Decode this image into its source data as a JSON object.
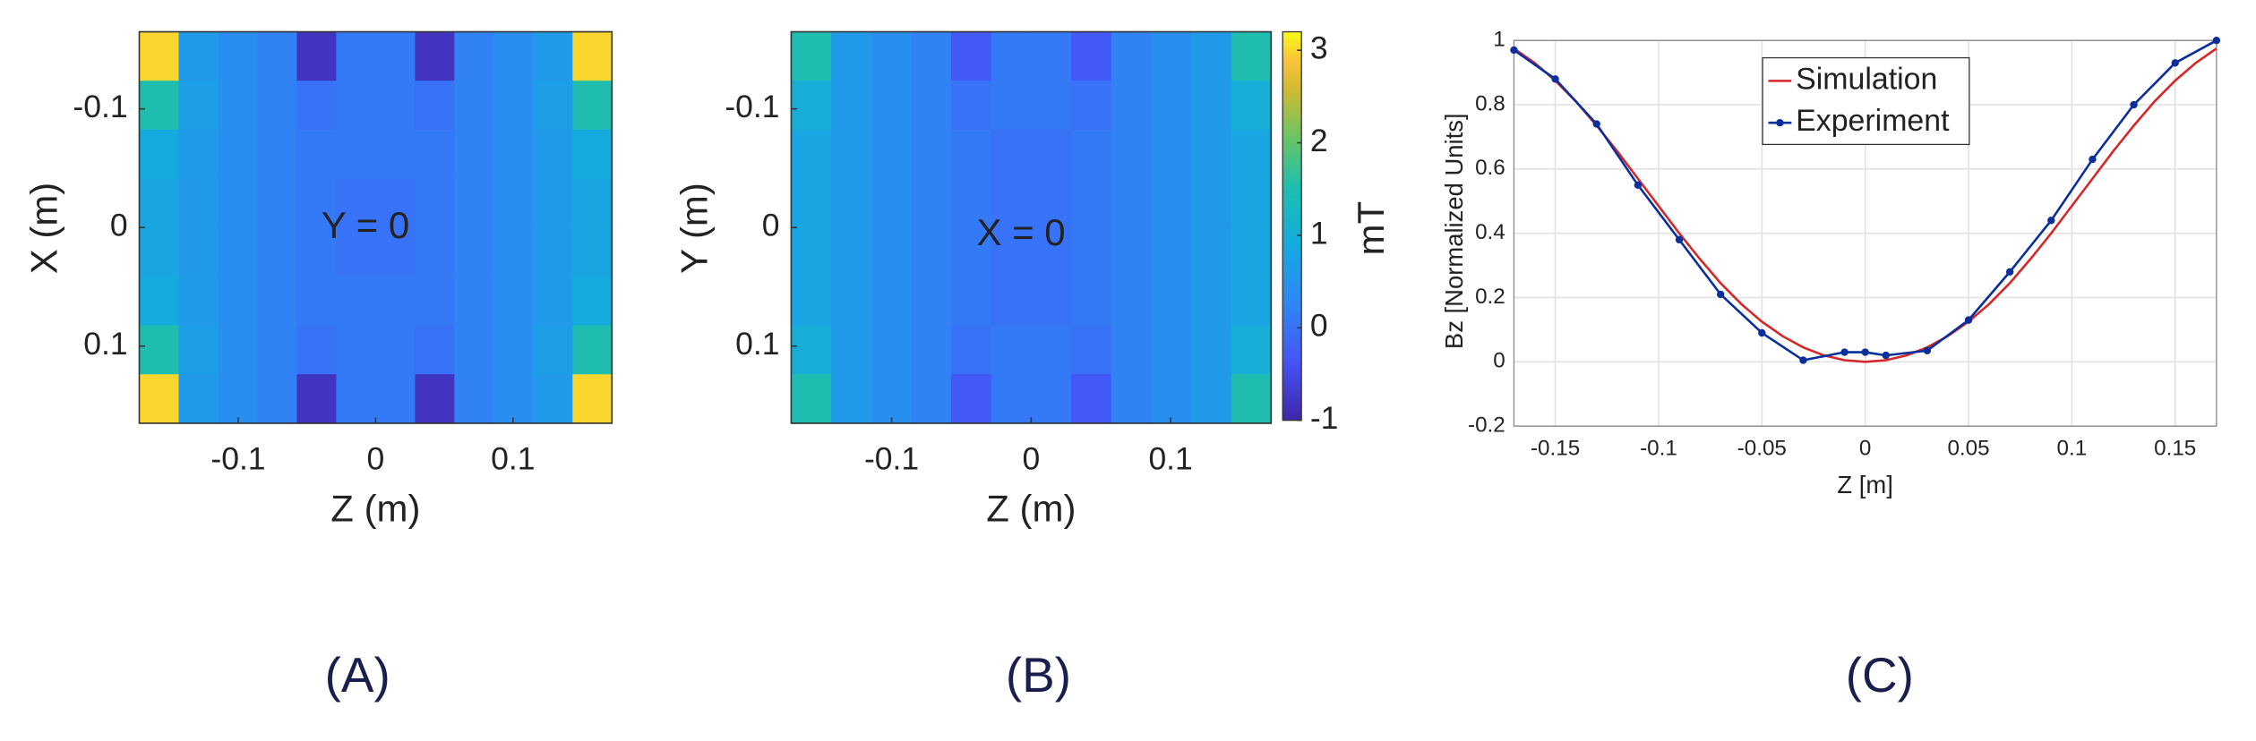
{
  "chart_data": [
    {
      "type": "heatmap",
      "annotation": "Y = 0",
      "panel_label": "(A)",
      "xlabel": "Z (m)",
      "ylabel": "X (m)",
      "xlim": [
        -0.172,
        0.172
      ],
      "ylim": [
        0.165,
        -0.165
      ],
      "xticks": [
        -0.1,
        0,
        0.1
      ],
      "yticks": [
        -0.1,
        0,
        0.1
      ],
      "colormap": "parula",
      "clim": [
        -1,
        3.2
      ],
      "values": [
        [
          3.0,
          0.6,
          0.4,
          0.2,
          -0.8,
          0.1,
          0.1,
          -0.8,
          0.2,
          0.4,
          0.6,
          3.0
        ],
        [
          1.5,
          0.7,
          0.4,
          0.2,
          0.0,
          0.1,
          0.1,
          0.0,
          0.2,
          0.4,
          0.7,
          1.5
        ],
        [
          0.9,
          0.6,
          0.4,
          0.2,
          0.1,
          0.1,
          0.1,
          0.1,
          0.2,
          0.4,
          0.6,
          0.9
        ],
        [
          0.8,
          0.6,
          0.4,
          0.2,
          0.1,
          0.0,
          0.0,
          0.1,
          0.2,
          0.4,
          0.6,
          0.8
        ],
        [
          0.8,
          0.6,
          0.4,
          0.2,
          0.1,
          0.0,
          0.0,
          0.1,
          0.2,
          0.4,
          0.6,
          0.8
        ],
        [
          0.9,
          0.6,
          0.4,
          0.2,
          0.1,
          0.1,
          0.1,
          0.1,
          0.2,
          0.4,
          0.6,
          0.9
        ],
        [
          1.5,
          0.7,
          0.4,
          0.2,
          0.0,
          0.1,
          0.1,
          0.0,
          0.2,
          0.4,
          0.7,
          1.5
        ],
        [
          3.0,
          0.6,
          0.4,
          0.2,
          -0.8,
          0.1,
          0.1,
          -0.8,
          0.2,
          0.4,
          0.6,
          3.0
        ]
      ]
    },
    {
      "type": "heatmap",
      "annotation": "X = 0",
      "panel_label": "(B)",
      "xlabel": "Z (m)",
      "ylabel": "Y (m)",
      "xlim": [
        -0.172,
        0.172
      ],
      "ylim": [
        0.165,
        -0.165
      ],
      "xticks": [
        -0.1,
        0,
        0.1
      ],
      "yticks": [
        -0.1,
        0,
        0.1
      ],
      "colormap": "parula",
      "clim": [
        -1,
        3.2
      ],
      "colorbar": {
        "label": "mT",
        "ticks": [
          -1,
          0,
          1,
          2,
          3
        ]
      },
      "values": [
        [
          1.5,
          0.6,
          0.4,
          0.2,
          -0.3,
          0.1,
          0.1,
          -0.3,
          0.2,
          0.4,
          0.6,
          1.5
        ],
        [
          1.0,
          0.6,
          0.4,
          0.2,
          0.0,
          0.1,
          0.1,
          0.0,
          0.2,
          0.4,
          0.6,
          1.0
        ],
        [
          0.8,
          0.6,
          0.4,
          0.2,
          0.1,
          0.0,
          0.0,
          0.1,
          0.2,
          0.4,
          0.6,
          0.8
        ],
        [
          0.8,
          0.6,
          0.4,
          0.2,
          0.1,
          0.0,
          0.0,
          0.1,
          0.2,
          0.4,
          0.6,
          0.8
        ],
        [
          0.8,
          0.6,
          0.4,
          0.2,
          0.1,
          0.0,
          0.0,
          0.1,
          0.2,
          0.4,
          0.6,
          0.8
        ],
        [
          0.8,
          0.6,
          0.4,
          0.2,
          0.1,
          0.0,
          0.0,
          0.1,
          0.2,
          0.4,
          0.6,
          0.8
        ],
        [
          1.0,
          0.6,
          0.4,
          0.2,
          0.0,
          0.1,
          0.1,
          0.0,
          0.2,
          0.4,
          0.6,
          1.0
        ],
        [
          1.5,
          0.6,
          0.4,
          0.2,
          -0.3,
          0.1,
          0.1,
          -0.3,
          0.2,
          0.4,
          0.6,
          1.5
        ]
      ]
    },
    {
      "type": "line",
      "panel_label": "(C)",
      "xlabel": "Z [m]",
      "ylabel": "Bz [Normalized Units]",
      "xlim": [
        -0.17,
        0.17
      ],
      "ylim": [
        -0.2,
        1
      ],
      "xticks": [
        -0.15,
        -0.1,
        -0.05,
        0,
        0.05,
        0.1,
        0.15
      ],
      "yticks": [
        -0.2,
        0,
        0.2,
        0.4,
        0.6,
        0.8,
        1
      ],
      "grid": true,
      "legend": "north",
      "series": [
        {
          "name": "Simulation",
          "color": "#d62728",
          "x": [
            -0.17,
            -0.16,
            -0.15,
            -0.14,
            -0.13,
            -0.12,
            -0.11,
            -0.1,
            -0.09,
            -0.08,
            -0.07,
            -0.06,
            -0.05,
            -0.04,
            -0.03,
            -0.02,
            -0.01,
            0,
            0.01,
            0.02,
            0.03,
            0.04,
            0.05,
            0.06,
            0.07,
            0.08,
            0.09,
            0.1,
            0.11,
            0.12,
            0.13,
            0.14,
            0.15,
            0.16,
            0.17
          ],
          "values": [
            0.975,
            0.93,
            0.875,
            0.81,
            0.735,
            0.655,
            0.57,
            0.485,
            0.4,
            0.32,
            0.245,
            0.18,
            0.125,
            0.08,
            0.045,
            0.02,
            0.005,
            0,
            0.005,
            0.02,
            0.045,
            0.08,
            0.125,
            0.18,
            0.245,
            0.32,
            0.4,
            0.485,
            0.57,
            0.655,
            0.735,
            0.81,
            0.875,
            0.93,
            0.975
          ]
        },
        {
          "name": "Experiment",
          "color": "#0a2f9c",
          "marker": "circle",
          "x": [
            -0.17,
            -0.15,
            -0.13,
            -0.11,
            -0.09,
            -0.07,
            -0.05,
            -0.03,
            -0.01,
            0,
            0.01,
            0.03,
            0.05,
            0.07,
            0.09,
            0.11,
            0.13,
            0.15,
            0.17
          ],
          "values": [
            0.97,
            0.88,
            0.74,
            0.55,
            0.38,
            0.21,
            0.09,
            0.005,
            0.03,
            0.03,
            0.02,
            0.035,
            0.13,
            0.28,
            0.44,
            0.63,
            0.8,
            0.93,
            1.0
          ]
        }
      ]
    }
  ]
}
